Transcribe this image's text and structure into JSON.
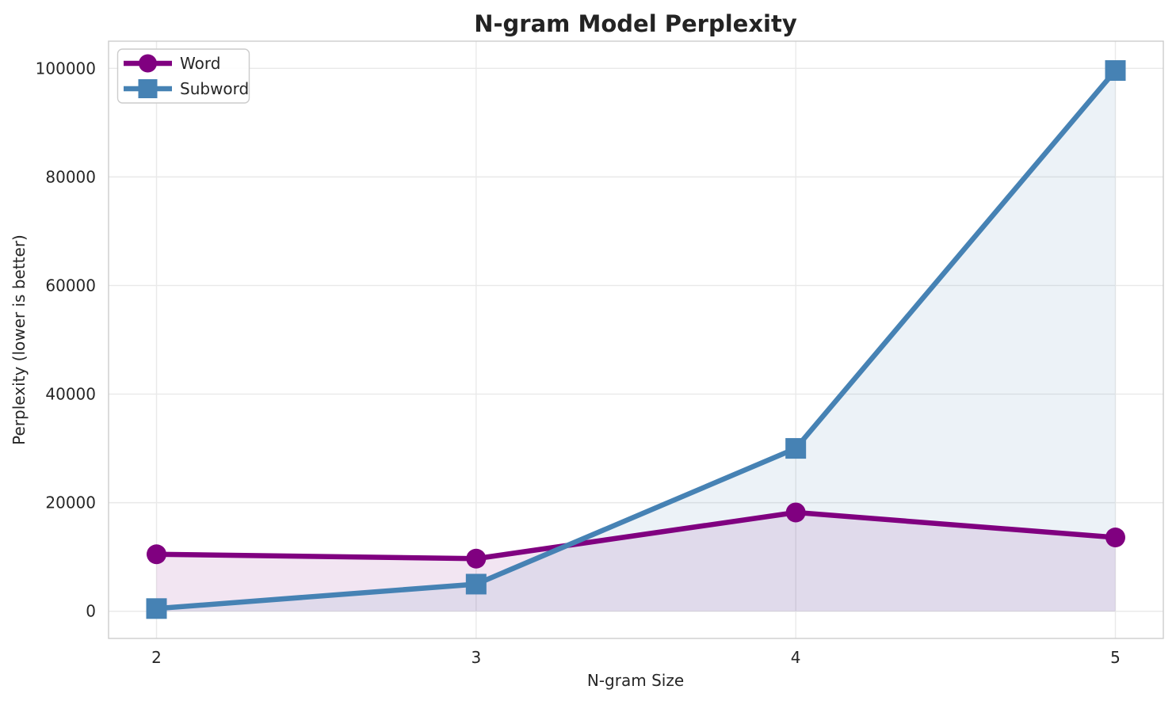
{
  "chart_data": {
    "type": "line",
    "title": "N-gram Model Perplexity",
    "xlabel": "N-gram Size",
    "ylabel": "Perplexity (lower is better)",
    "x": [
      2,
      3,
      4,
      5
    ],
    "series": [
      {
        "name": "Word",
        "values": [
          10500,
          9700,
          18200,
          13600
        ],
        "color": "#800080",
        "marker": "circle",
        "area_fill": true
      },
      {
        "name": "Subword",
        "values": [
          500,
          5000,
          30000,
          99600
        ],
        "color": "#4682B4",
        "marker": "square",
        "area_fill": true
      }
    ],
    "xticks": [
      "2",
      "3",
      "4",
      "5"
    ],
    "xtick_values": [
      2,
      3,
      4,
      5
    ],
    "yticks": [
      "0",
      "20000",
      "40000",
      "60000",
      "80000",
      "100000"
    ],
    "ytick_values": [
      0,
      20000,
      40000,
      60000,
      80000,
      100000
    ],
    "xlim": [
      1.85,
      5.15
    ],
    "ylim": [
      -5000,
      105000
    ],
    "grid": true,
    "legend_position": "upper left",
    "area_fill_opacity": 0.1,
    "line_width": 6.5,
    "grid_color": "#e9e9e9",
    "spine_color": "#cccccc",
    "text_color": "#262626"
  }
}
